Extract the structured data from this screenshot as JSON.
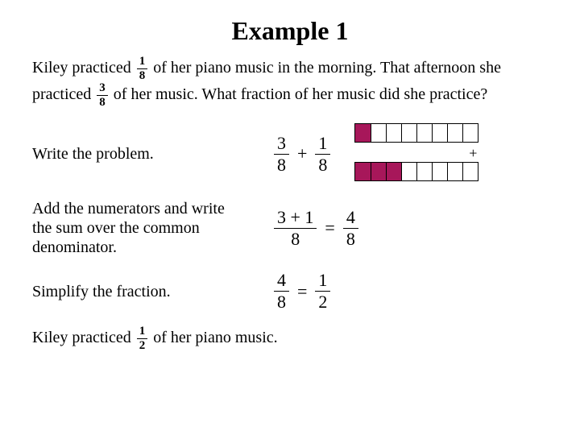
{
  "title": "Example 1",
  "problem": {
    "part1": "Kiley practiced",
    "frac1": {
      "num": "1",
      "den": "8"
    },
    "part2": "of her piano music in the morning.  That afternoon she practiced",
    "frac2": {
      "num": "3",
      "den": "8"
    },
    "part3": "of her music. What fraction of her music did she practice?"
  },
  "steps": {
    "s1": {
      "label": "Write the problem.",
      "fracA": {
        "n": "3",
        "d": "8"
      },
      "op": "+",
      "fracB": {
        "n": "1",
        "d": "8"
      }
    },
    "s2": {
      "label": "Add the numerators and write the sum over the common denominator.",
      "fracA": {
        "n": "3 + 1",
        "d": "8"
      },
      "eq": "=",
      "fracB": {
        "n": "4",
        "d": "8"
      }
    },
    "s3": {
      "label": "Simplify the fraction.",
      "fracA": {
        "n": "4",
        "d": "8"
      },
      "eq": "=",
      "fracB": {
        "n": "1",
        "d": "2"
      }
    }
  },
  "bars": {
    "row1_filled": 1,
    "row2_filled": 3,
    "cells": 8,
    "fill_color": "#a7175a",
    "plus": "+"
  },
  "answer": {
    "part1": "Kiley practiced",
    "frac": {
      "num": "1",
      "den": "2"
    },
    "part2": "of her piano music."
  }
}
